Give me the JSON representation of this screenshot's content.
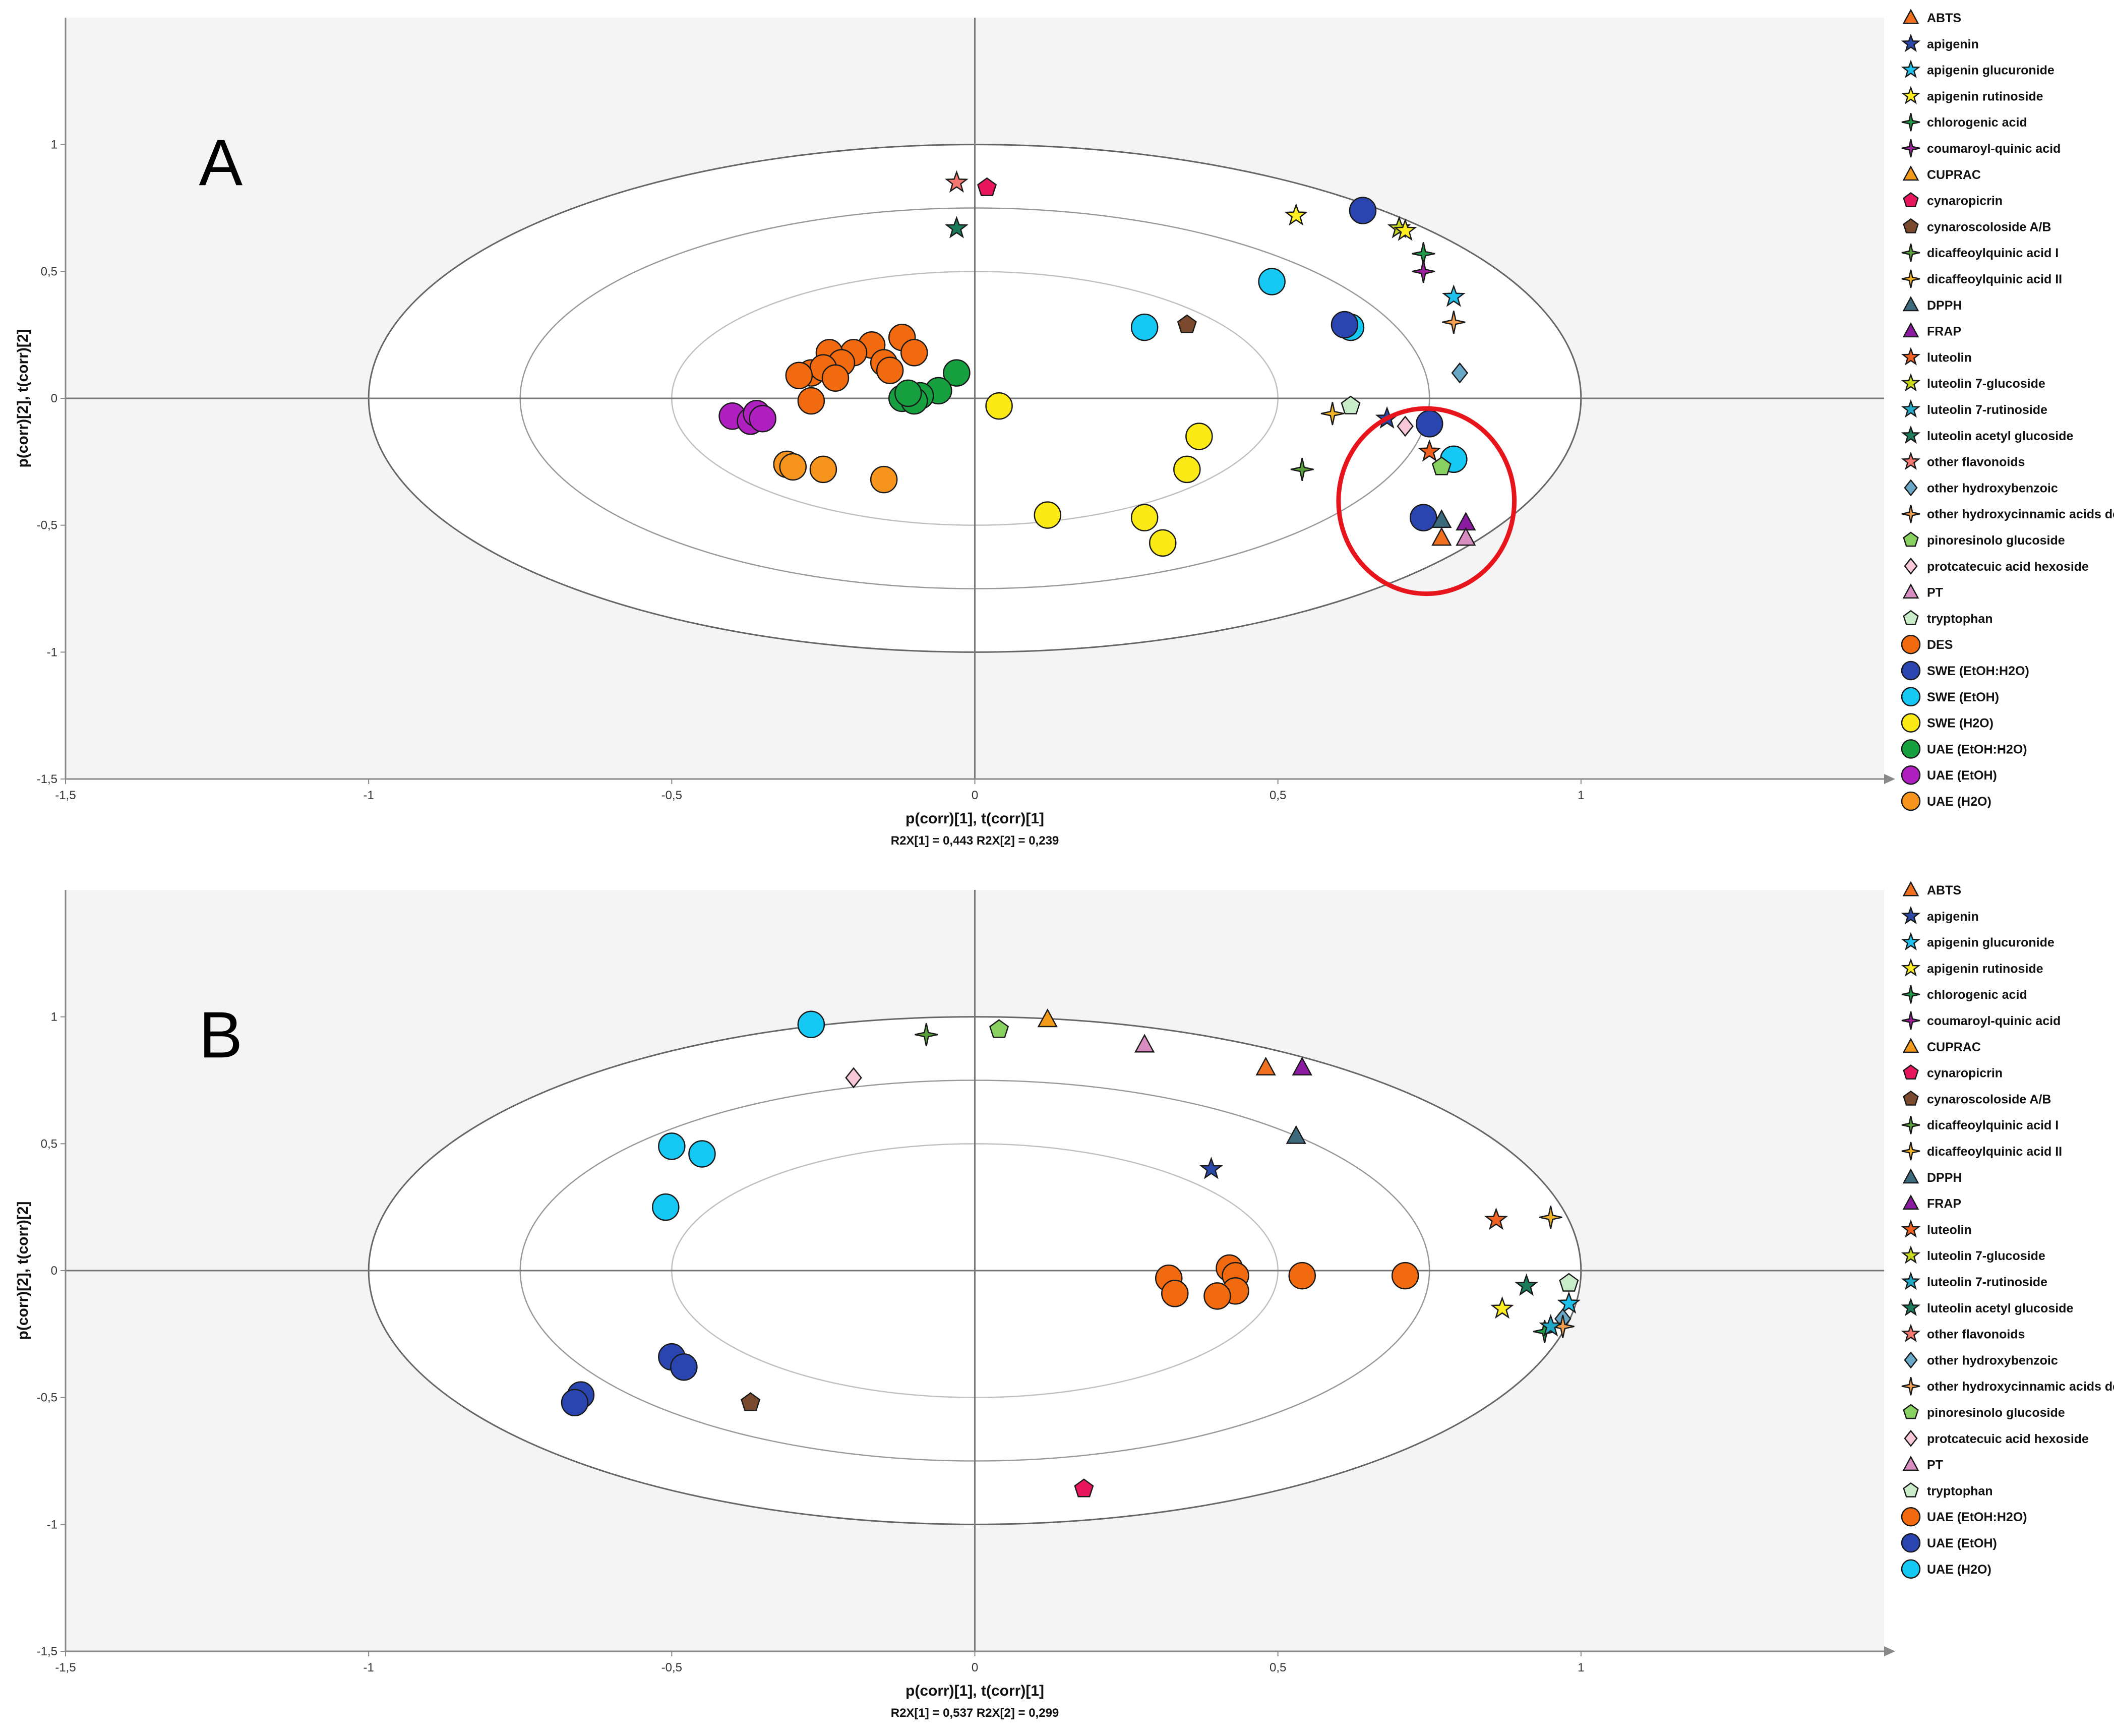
{
  "chart_data": [
    {
      "panel": "A",
      "type": "scatter",
      "xlabel": "p(corr)[1], t(corr)[1]",
      "ylabel": "p(corr)[2], t(corr)[2]",
      "footnote": "R2X[1] = 0,443 R2X[2] = 0,239",
      "xlim": [
        -1.5,
        1.5
      ],
      "ylim": [
        -1.5,
        1.5
      ],
      "xticks": [
        "-1,5",
        "-1",
        "-0,5",
        "0",
        "0,5",
        "1"
      ],
      "yticks": [
        "1",
        "0,5",
        "0",
        "-0,5",
        "-1",
        "-1,5"
      ],
      "ellipse_levels": [
        1.0,
        0.75,
        0.5
      ],
      "highlight_ellipse": {
        "cx": 0.745,
        "cy": -0.405,
        "rx": 0.145,
        "ry": 0.365,
        "color": "#e8141c"
      },
      "legend": [
        "ABTS",
        "apigenin",
        "apigenin glucuronide",
        "apigenin rutinoside",
        "chlorogenic acid",
        "coumaroyl-quinic acid",
        "CUPRAC",
        "cynaropicrin",
        "cynaroscoloside A/B",
        "dicaffeoylquinic acid I",
        "dicaffeoylquinic acid II",
        "DPPH",
        "FRAP",
        "luteolin",
        "luteolin 7-glucoside",
        "luteolin 7-rutinoside",
        "luteolin acetyl glucoside",
        "other flavonoids",
        "other hydroxybenzoic",
        "other hydroxycinnamic acids der",
        "pinoresinolo glucoside",
        "protcatecuic acid hexoside",
        "PT",
        "tryptophan",
        "DES",
        "SWE (EtOH:H2O)",
        "SWE (EtOH)",
        "SWE (H2O)",
        "UAE (EtOH:H2O)",
        "UAE (EtOH)",
        "UAE (H2O)"
      ],
      "points": [
        {
          "label": "DES",
          "x": -0.12,
          "y": 0.24
        },
        {
          "label": "DES",
          "x": -0.17,
          "y": 0.21
        },
        {
          "label": "DES",
          "x": -0.2,
          "y": 0.18
        },
        {
          "label": "DES",
          "x": -0.24,
          "y": 0.18
        },
        {
          "label": "DES",
          "x": -0.27,
          "y": 0.1
        },
        {
          "label": "DES",
          "x": -0.22,
          "y": 0.14
        },
        {
          "label": "DES",
          "x": -0.15,
          "y": 0.14
        },
        {
          "label": "DES",
          "x": -0.1,
          "y": 0.18
        },
        {
          "label": "DES",
          "x": -0.14,
          "y": 0.11
        },
        {
          "label": "DES",
          "x": -0.25,
          "y": 0.12
        },
        {
          "label": "DES",
          "x": -0.29,
          "y": 0.09
        },
        {
          "label": "DES",
          "x": -0.23,
          "y": 0.08
        },
        {
          "label": "DES",
          "x": -0.27,
          "y": -0.01
        },
        {
          "label": "UAE (EtOH:H2O)",
          "x": -0.03,
          "y": 0.1
        },
        {
          "label": "UAE (EtOH:H2O)",
          "x": -0.06,
          "y": 0.03
        },
        {
          "label": "UAE (EtOH:H2O)",
          "x": -0.09,
          "y": 0.01
        },
        {
          "label": "UAE (EtOH:H2O)",
          "x": -0.12,
          "y": 0.0
        },
        {
          "label": "UAE (EtOH:H2O)",
          "x": -0.1,
          "y": -0.01
        },
        {
          "label": "UAE (EtOH:H2O)",
          "x": -0.11,
          "y": 0.02
        },
        {
          "label": "UAE (EtOH)",
          "x": -0.4,
          "y": -0.07
        },
        {
          "label": "UAE (EtOH)",
          "x": -0.37,
          "y": -0.09
        },
        {
          "label": "UAE (EtOH)",
          "x": -0.36,
          "y": -0.06
        },
        {
          "label": "UAE (EtOH)",
          "x": -0.35,
          "y": -0.08
        },
        {
          "label": "UAE (H2O)",
          "x": -0.31,
          "y": -0.26
        },
        {
          "label": "UAE (H2O)",
          "x": -0.25,
          "y": -0.28
        },
        {
          "label": "UAE (H2O)",
          "x": -0.3,
          "y": -0.27
        },
        {
          "label": "UAE (H2O)",
          "x": -0.15,
          "y": -0.32
        },
        {
          "label": "SWE (H2O)",
          "x": 0.04,
          "y": -0.03
        },
        {
          "label": "SWE (H2O)",
          "x": 0.37,
          "y": -0.15
        },
        {
          "label": "SWE (H2O)",
          "x": 0.35,
          "y": -0.28
        },
        {
          "label": "SWE (H2O)",
          "x": 0.12,
          "y": -0.46
        },
        {
          "label": "SWE (H2O)",
          "x": 0.28,
          "y": -0.47
        },
        {
          "label": "SWE (H2O)",
          "x": 0.31,
          "y": -0.57
        },
        {
          "label": "SWE (EtOH)",
          "x": 0.28,
          "y": 0.28
        },
        {
          "label": "SWE (EtOH)",
          "x": 0.49,
          "y": 0.46
        },
        {
          "label": "SWE (EtOH)",
          "x": 0.62,
          "y": 0.28
        },
        {
          "label": "SWE (EtOH)",
          "x": 0.79,
          "y": -0.24
        },
        {
          "label": "SWE (EtOH:H2O)",
          "x": 0.64,
          "y": 0.74
        },
        {
          "label": "SWE (EtOH:H2O)",
          "x": 0.61,
          "y": 0.29
        },
        {
          "label": "SWE (EtOH:H2O)",
          "x": 0.75,
          "y": -0.1
        },
        {
          "label": "SWE (EtOH:H2O)",
          "x": 0.74,
          "y": -0.47
        },
        {
          "label": "other flavonoids",
          "x": -0.03,
          "y": 0.85
        },
        {
          "label": "cynaropicrin",
          "x": 0.02,
          "y": 0.83
        },
        {
          "label": "luteolin acetyl glucoside",
          "x": -0.03,
          "y": 0.67
        },
        {
          "label": "cynaroscoloside A/B",
          "x": 0.35,
          "y": 0.29
        },
        {
          "label": "apigenin rutinoside",
          "x": 0.53,
          "y": 0.72
        },
        {
          "label": "luteolin 7-glucoside",
          "x": 0.7,
          "y": 0.67
        },
        {
          "label": "apigenin rutinoside",
          "x": 0.71,
          "y": 0.66
        },
        {
          "label": "chlorogenic acid",
          "x": 0.74,
          "y": 0.57
        },
        {
          "label": "coumaroyl-quinic acid",
          "x": 0.74,
          "y": 0.5
        },
        {
          "label": "apigenin glucuronide",
          "x": 0.79,
          "y": 0.4
        },
        {
          "label": "other hydroxycinnamic acids der",
          "x": 0.79,
          "y": 0.3
        },
        {
          "label": "other hydroxybenzoic",
          "x": 0.8,
          "y": 0.1
        },
        {
          "label": "tryptophan",
          "x": 0.62,
          "y": -0.03
        },
        {
          "label": "dicaffeoylquinic acid II",
          "x": 0.59,
          "y": -0.06
        },
        {
          "label": "apigenin",
          "x": 0.68,
          "y": -0.08
        },
        {
          "label": "protcatecuic acid hexoside",
          "x": 0.71,
          "y": -0.11
        },
        {
          "label": "dicaffeoylquinic acid I",
          "x": 0.54,
          "y": -0.28
        },
        {
          "label": "luteolin",
          "x": 0.75,
          "y": -0.21
        },
        {
          "label": "pinoresinolo glucoside",
          "x": 0.77,
          "y": -0.27
        },
        {
          "label": "DPPH",
          "x": 0.77,
          "y": -0.48
        },
        {
          "label": "FRAP",
          "x": 0.81,
          "y": -0.49
        },
        {
          "label": "ABTS",
          "x": 0.77,
          "y": -0.55
        },
        {
          "label": "PT",
          "x": 0.81,
          "y": -0.55
        }
      ]
    },
    {
      "panel": "B",
      "type": "scatter",
      "xlabel": "p(corr)[1], t(corr)[1]",
      "ylabel": "p(corr)[2], t(corr)[2]",
      "footnote": "R2X[1] = 0,537 R2X[2] = 0,299",
      "xlim": [
        -1.5,
        1.5
      ],
      "ylim": [
        -1.5,
        1.5
      ],
      "xticks": [
        "-1,5",
        "-1",
        "-0,5",
        "0",
        "0,5",
        "1"
      ],
      "yticks": [
        "1",
        "0,5",
        "0",
        "-0,5",
        "-1",
        "-1,5"
      ],
      "ellipse_levels": [
        1.0,
        0.75,
        0.5
      ],
      "legend": [
        "ABTS",
        "apigenin",
        "apigenin glucuronide",
        "apigenin rutinoside",
        "chlorogenic acid",
        "coumaroyl-quinic acid",
        "CUPRAC",
        "cynaropicrin",
        "cynaroscoloside A/B",
        "dicaffeoylquinic acid I",
        "dicaffeoylquinic acid II",
        "DPPH",
        "FRAP",
        "luteolin",
        "luteolin 7-glucoside",
        "luteolin 7-rutinoside",
        "luteolin acetyl glucoside",
        "other flavonoids",
        "other hydroxybenzoic",
        "other hydroxycinnamic acids der",
        "pinoresinolo glucoside",
        "protcatecuic acid hexoside",
        "PT",
        "tryptophan",
        "UAE (EtOH:H2O)",
        "UAE (EtOH)",
        "UAE (H2O)"
      ],
      "points": [
        {
          "label": "UAE (H2O)",
          "x": -0.27,
          "y": 0.97
        },
        {
          "label": "UAE (H2O)",
          "x": -0.5,
          "y": 0.49
        },
        {
          "label": "UAE (H2O)",
          "x": -0.45,
          "y": 0.46
        },
        {
          "label": "UAE (H2O)",
          "x": -0.51,
          "y": 0.25
        },
        {
          "label": "UAE (EtOH)",
          "x": -0.5,
          "y": -0.34
        },
        {
          "label": "UAE (EtOH)",
          "x": -0.48,
          "y": -0.38
        },
        {
          "label": "UAE (EtOH)",
          "x": -0.65,
          "y": -0.49
        },
        {
          "label": "UAE (EtOH)",
          "x": -0.66,
          "y": -0.52
        },
        {
          "label": "UAE (EtOH:H2O)",
          "x": 0.32,
          "y": -0.03
        },
        {
          "label": "UAE (EtOH:H2O)",
          "x": 0.33,
          "y": -0.09
        },
        {
          "label": "UAE (EtOH:H2O)",
          "x": 0.42,
          "y": 0.01
        },
        {
          "label": "UAE (EtOH:H2O)",
          "x": 0.43,
          "y": -0.02
        },
        {
          "label": "UAE (EtOH:H2O)",
          "x": 0.43,
          "y": -0.08
        },
        {
          "label": "UAE (EtOH:H2O)",
          "x": 0.4,
          "y": -0.1
        },
        {
          "label": "UAE (EtOH:H2O)",
          "x": 0.54,
          "y": -0.02
        },
        {
          "label": "UAE (EtOH:H2O)",
          "x": 0.71,
          "y": -0.02
        },
        {
          "label": "dicaffeoylquinic acid I",
          "x": -0.08,
          "y": 0.93
        },
        {
          "label": "pinoresinolo glucoside",
          "x": 0.04,
          "y": 0.95
        },
        {
          "label": "CUPRAC",
          "x": 0.12,
          "y": 0.99
        },
        {
          "label": "PT",
          "x": 0.28,
          "y": 0.89
        },
        {
          "label": "ABTS",
          "x": 0.48,
          "y": 0.8
        },
        {
          "label": "FRAP",
          "x": 0.54,
          "y": 0.8
        },
        {
          "label": "protcatecuic acid hexoside",
          "x": -0.2,
          "y": 0.76
        },
        {
          "label": "DPPH",
          "x": 0.53,
          "y": 0.53
        },
        {
          "label": "apigenin",
          "x": 0.39,
          "y": 0.4
        },
        {
          "label": "luteolin",
          "x": 0.86,
          "y": 0.2
        },
        {
          "label": "dicaffeoylquinic acid II",
          "x": 0.95,
          "y": 0.21
        },
        {
          "label": "tryptophan",
          "x": 0.98,
          "y": -0.05
        },
        {
          "label": "luteolin acetyl glucoside",
          "x": 0.91,
          "y": -0.06
        },
        {
          "label": "apigenin glucuronide",
          "x": 0.98,
          "y": -0.13
        },
        {
          "label": "apigenin rutinoside",
          "x": 0.87,
          "y": -0.15
        },
        {
          "label": "other hydroxybenzoic",
          "x": 0.97,
          "y": -0.19
        },
        {
          "label": "other hydroxycinnamic acids der",
          "x": 0.97,
          "y": -0.22
        },
        {
          "label": "chlorogenic acid",
          "x": 0.94,
          "y": -0.24
        },
        {
          "label": "luteolin 7-rutinoside",
          "x": 0.95,
          "y": -0.22
        },
        {
          "label": "cynaroscoloside A/B",
          "x": -0.37,
          "y": -0.52
        },
        {
          "label": "cynaropicrin",
          "x": 0.18,
          "y": -0.86
        }
      ]
    }
  ],
  "marker_styles": {
    "ABTS": {
      "shape": "triangle",
      "color": "#f07020"
    },
    "apigenin": {
      "shape": "star5",
      "color": "#2a48a8"
    },
    "apigenin glucuronide": {
      "shape": "star5",
      "color": "#1ec0ec"
    },
    "apigenin rutinoside": {
      "shape": "star5",
      "color": "#ffee22"
    },
    "chlorogenic acid": {
      "shape": "star4",
      "color": "#1f9a48"
    },
    "coumaroyl-quinic acid": {
      "shape": "star4",
      "color": "#a020a0"
    },
    "CUPRAC": {
      "shape": "triangle",
      "color": "#f39a1a"
    },
    "cynaropicrin": {
      "shape": "pentagon",
      "color": "#e8175d"
    },
    "cynaroscoloside A/B": {
      "shape": "pentagon",
      "color": "#7b4a2e"
    },
    "dicaffeoylquinic acid I": {
      "shape": "star4",
      "color": "#5aa03a"
    },
    "dicaffeoylquinic acid II": {
      "shape": "star4",
      "color": "#f4b428"
    },
    "DPPH": {
      "shape": "triangle",
      "color": "#3e6a7e"
    },
    "FRAP": {
      "shape": "triangle",
      "color": "#8a1aa0"
    },
    "luteolin": {
      "shape": "star5",
      "color": "#f06020"
    },
    "luteolin 7-glucoside": {
      "shape": "star5",
      "color": "#c8d81c"
    },
    "luteolin 7-rutinoside": {
      "shape": "star5",
      "color": "#22a8c4"
    },
    "luteolin acetyl glucoside": {
      "shape": "star5",
      "color": "#1a7a5a"
    },
    "other flavonoids": {
      "shape": "star5",
      "color": "#f47870"
    },
    "other hydroxybenzoic": {
      "shape": "diamond",
      "color": "#6aa8c8"
    },
    "other hydroxycinnamic acids der": {
      "shape": "star4",
      "color": "#f4a050"
    },
    "pinoresinolo glucoside": {
      "shape": "pentagon",
      "color": "#88d060"
    },
    "protcatecuic acid hexoside": {
      "shape": "diamond",
      "color": "#f8c8d8"
    },
    "PT": {
      "shape": "triangle",
      "color": "#d88ec0"
    },
    "tryptophan": {
      "shape": "pentagon",
      "color": "#c8ecc8"
    },
    "DES": {
      "shape": "circle",
      "color": "#f26a10"
    },
    "SWE (EtOH:H2O)": {
      "shape": "circle",
      "color": "#2a44b0"
    },
    "SWE (EtOH)": {
      "shape": "circle",
      "color": "#16c8f4"
    },
    "SWE (H2O)": {
      "shape": "circle",
      "color": "#fbea16"
    },
    "UAE (EtOH:H2O)": {
      "shape": "circle",
      "color": "#16a040"
    },
    "UAE (EtOH)": {
      "shape": "circle",
      "color": "#b020c0"
    },
    "UAE (H2O)": {
      "shape": "circle",
      "color": "#f7941d"
    }
  },
  "panel_B_marker_overrides": {
    "UAE (EtOH:H2O)": {
      "shape": "circle",
      "color": "#f26a10"
    },
    "UAE (EtOH)": {
      "shape": "circle",
      "color": "#2a44b0"
    },
    "UAE (H2O)": {
      "shape": "circle",
      "color": "#16c8f4"
    }
  }
}
